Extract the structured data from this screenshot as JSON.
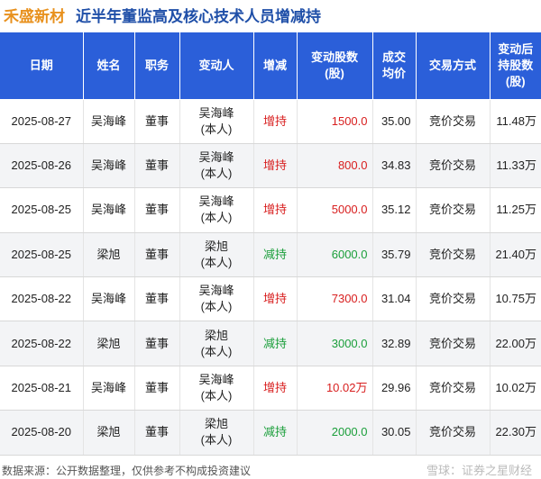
{
  "title": {
    "stock_name": "禾盛新材",
    "heading": "近半年董监高及核心技术人员增减持"
  },
  "table": {
    "headers": [
      [
        "日期"
      ],
      [
        "姓名"
      ],
      [
        "职务"
      ],
      [
        "变动人"
      ],
      [
        "增减"
      ],
      [
        "变动股数",
        "(股)"
      ],
      [
        "成交",
        "均价"
      ],
      [
        "交易方式"
      ],
      [
        "变动后",
        "持股数",
        "(股)"
      ]
    ],
    "rows": [
      {
        "date": "2025-08-27",
        "name": "吴海峰",
        "role": "董事",
        "person": [
          "吴海峰",
          "(本人)"
        ],
        "change": "增持",
        "type": "inc",
        "shares": "1500.0",
        "price": "35.00",
        "method": "竞价交易",
        "after": "11.48万"
      },
      {
        "date": "2025-08-26",
        "name": "吴海峰",
        "role": "董事",
        "person": [
          "吴海峰",
          "(本人)"
        ],
        "change": "增持",
        "type": "inc",
        "shares": "800.0",
        "price": "34.83",
        "method": "竞价交易",
        "after": "11.33万"
      },
      {
        "date": "2025-08-25",
        "name": "吴海峰",
        "role": "董事",
        "person": [
          "吴海峰",
          "(本人)"
        ],
        "change": "增持",
        "type": "inc",
        "shares": "5000.0",
        "price": "35.12",
        "method": "竞价交易",
        "after": "11.25万"
      },
      {
        "date": "2025-08-25",
        "name": "梁旭",
        "role": "董事",
        "person": [
          "梁旭",
          "(本人)"
        ],
        "change": "减持",
        "type": "dec",
        "shares": "6000.0",
        "price": "35.79",
        "method": "竞价交易",
        "after": "21.40万"
      },
      {
        "date": "2025-08-22",
        "name": "吴海峰",
        "role": "董事",
        "person": [
          "吴海峰",
          "(本人)"
        ],
        "change": "增持",
        "type": "inc",
        "shares": "7300.0",
        "price": "31.04",
        "method": "竞价交易",
        "after": "10.75万"
      },
      {
        "date": "2025-08-22",
        "name": "梁旭",
        "role": "董事",
        "person": [
          "梁旭",
          "(本人)"
        ],
        "change": "减持",
        "type": "dec",
        "shares": "3000.0",
        "price": "32.89",
        "method": "竞价交易",
        "after": "22.00万"
      },
      {
        "date": "2025-08-21",
        "name": "吴海峰",
        "role": "董事",
        "person": [
          "吴海峰",
          "(本人)"
        ],
        "change": "增持",
        "type": "inc",
        "shares": "10.02万",
        "price": "29.96",
        "method": "竞价交易",
        "after": "10.02万"
      },
      {
        "date": "2025-08-20",
        "name": "梁旭",
        "role": "董事",
        "person": [
          "梁旭",
          "(本人)"
        ],
        "change": "减持",
        "type": "dec",
        "shares": "2000.0",
        "price": "30.05",
        "method": "竞价交易",
        "after": "22.30万"
      }
    ]
  },
  "footer": {
    "source": "数据来源：公开数据整理，仅供参考不构成投资建议",
    "brand": "雪球：证券之星财经"
  },
  "watermark": "证券之星",
  "colors": {
    "header_bg": "#2b5fd9",
    "increase": "#d81e1e",
    "decrease": "#1a9e3a",
    "stock_name": "#e8911e",
    "heading": "#1f4fa8"
  }
}
